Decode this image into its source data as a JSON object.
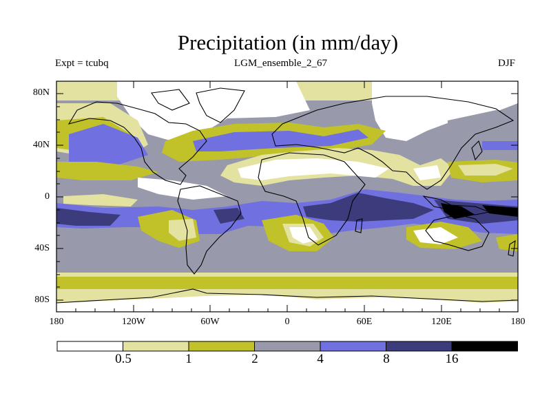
{
  "title": "Precipitation (in mm/day)",
  "left_label": "Expt = tcubq",
  "center_label": "LGM_ensemble_2_67",
  "right_label": "DJF",
  "lat_ticks": [
    "80N",
    "40N",
    "0",
    "40S",
    "80S"
  ],
  "lon_ticks": [
    "180",
    "120W",
    "60W",
    "0",
    "60E",
    "120E",
    "180"
  ],
  "colorbar": {
    "labels": [
      "0.5",
      "1",
      "2",
      "4",
      "8",
      "16"
    ],
    "colors": [
      "#ffffff",
      "#e3e2a0",
      "#c1c12a",
      "#9899aa",
      "#7070e0",
      "#3c3c7c",
      "#000000"
    ]
  },
  "colors": {
    "c0": "#ffffff",
    "c1": "#e3e2a0",
    "c2": "#c1c12a",
    "c3": "#9899aa",
    "c4": "#7070e0",
    "c5": "#3c3c7c",
    "c6": "#000000"
  }
}
